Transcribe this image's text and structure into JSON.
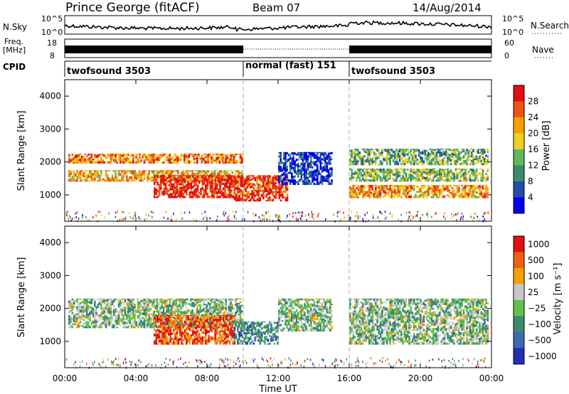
{
  "header": {
    "station": "Prince George (fitACF)",
    "beam": "Beam 07",
    "date": "14/Aug/2014"
  },
  "top_panels": {
    "nsky_label": "N.Sky",
    "nsky_ticks": [
      "10^5",
      "10^0"
    ],
    "nsearch_label": "N.Search",
    "nsearch_ticks": [
      "10^5",
      "10^0"
    ],
    "freq_label": [
      "Freq.",
      "[MHz]"
    ],
    "freq_ticks": [
      "18",
      "8"
    ],
    "nave_label": "Nave",
    "nave_ticks": [
      "60",
      "0"
    ],
    "cpid_label": "CPID",
    "cpid_segments": [
      {
        "label": "twofsound 3503",
        "start": 0,
        "end": 10
      },
      {
        "label": "normal (fast) 151",
        "start": 10,
        "end": 16
      },
      {
        "label": "twofsound 3503",
        "start": 16,
        "end": 24
      }
    ]
  },
  "chart_data": [
    {
      "type": "heatmap",
      "name": "power",
      "ylabel": "Slant Range [km]",
      "ylim": [
        200,
        4500
      ],
      "yticks": [
        "1000",
        "2000",
        "3000",
        "4000"
      ],
      "xlim": [
        0,
        24
      ],
      "colorbar_label": "Power [dB]",
      "colorbar_ticks": [
        "4",
        "8",
        "12",
        "16",
        "20",
        "24",
        "28"
      ],
      "colors": [
        "#0000ee",
        "#1f4fa8",
        "#3a8a6e",
        "#5fb85c",
        "#f0d020",
        "#f7a000",
        "#f05010",
        "#e01010"
      ],
      "bands": [
        {
          "x": [
            0.2,
            10
          ],
          "y": [
            1950,
            2250
          ],
          "level": 0.75
        },
        {
          "x": [
            0.2,
            10
          ],
          "y": [
            1400,
            1750
          ],
          "level": 0.65
        },
        {
          "x": [
            5,
            9.5
          ],
          "y": [
            900,
            1600
          ],
          "level": 0.95
        },
        {
          "x": [
            9.5,
            12.5
          ],
          "y": [
            800,
            1600
          ],
          "level": 0.9
        },
        {
          "x": [
            12,
            15
          ],
          "y": [
            1300,
            2300
          ],
          "level": 0.15
        },
        {
          "x": [
            16,
            23.8
          ],
          "y": [
            1900,
            2400
          ],
          "level": 0.4
        },
        {
          "x": [
            16,
            23.8
          ],
          "y": [
            1400,
            1800
          ],
          "level": 0.45
        },
        {
          "x": [
            16,
            23.8
          ],
          "y": [
            900,
            1300
          ],
          "level": 0.7
        }
      ]
    },
    {
      "type": "heatmap",
      "name": "velocity",
      "ylabel": "Slant Range [km]",
      "ylim": [
        200,
        4500
      ],
      "yticks": [
        "1000",
        "2000",
        "3000",
        "4000"
      ],
      "xlim": [
        0,
        24
      ],
      "xlabel": "Time UT",
      "xticks": [
        "00:00",
        "04:00",
        "08:00",
        "12:00",
        "16:00",
        "20:00",
        "00:00"
      ],
      "colorbar_label": "Velocity [m s⁻¹]",
      "colorbar_ticks": [
        "1000",
        "500",
        "100",
        "25",
        "−25",
        "−100",
        "−500",
        "−1000"
      ],
      "colors": [
        "#2030b0",
        "#3a6ab0",
        "#3a8a6e",
        "#5fc04a",
        "#c8c8c8",
        "#f7a000",
        "#f06010",
        "#e01010"
      ],
      "bands": [
        {
          "x": [
            0.2,
            10
          ],
          "y": [
            1400,
            2300
          ],
          "level": 0.45
        },
        {
          "x": [
            5,
            9.5
          ],
          "y": [
            900,
            1800
          ],
          "level": 0.85
        },
        {
          "x": [
            9.5,
            12
          ],
          "y": [
            900,
            1600
          ],
          "level": 0.3
        },
        {
          "x": [
            12,
            15
          ],
          "y": [
            1300,
            2300
          ],
          "level": 0.45
        },
        {
          "x": [
            16,
            23.8
          ],
          "y": [
            900,
            2300
          ],
          "level": 0.45
        }
      ]
    }
  ]
}
